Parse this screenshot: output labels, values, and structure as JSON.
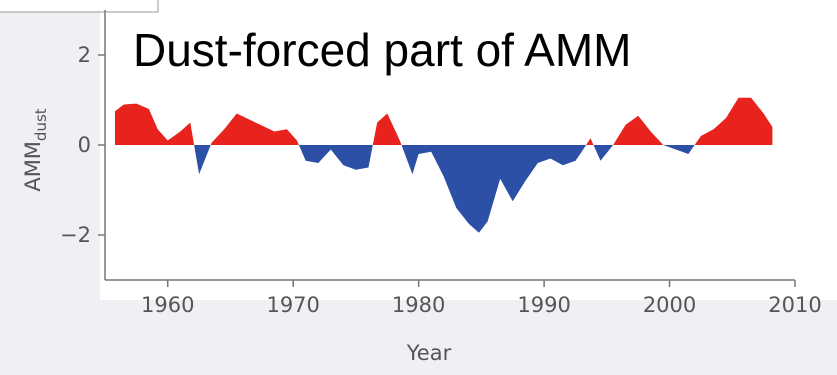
{
  "chart_data": {
    "type": "area",
    "title": "Dust-forced part of AMM",
    "xlabel": "Year",
    "ylabel": "AMM",
    "ylabel_subscript": "dust",
    "xlim": [
      1955,
      2010
    ],
    "ylim": [
      -3,
      3
    ],
    "xticks": [
      1960,
      1970,
      1980,
      1990,
      2000,
      2010
    ],
    "yticks": [
      2,
      0,
      -2
    ],
    "ytick_labels": [
      "2",
      "0",
      "−2"
    ],
    "positive_color": "#e8221c",
    "negative_color": "#2b50a6",
    "grid": false,
    "x": [
      1955.8,
      1956.5,
      1957.5,
      1958.5,
      1959.2,
      1960,
      1961,
      1961.8,
      1962.5,
      1963.5,
      1964.5,
      1965.5,
      1967,
      1968.5,
      1969.5,
      1970.3,
      1971,
      1972,
      1973,
      1974,
      1975,
      1976,
      1976.7,
      1977.5,
      1978.5,
      1979.5,
      1980,
      1981,
      1982,
      1983,
      1984,
      1984.8,
      1985.5,
      1986.5,
      1987.5,
      1988.5,
      1989.5,
      1990.5,
      1991.5,
      1992.5,
      1993,
      1993.7,
      1994.5,
      1995.5,
      1996.5,
      1997.5,
      1998.5,
      1999.5,
      2000.5,
      2001.5,
      2002.5,
      2003.5,
      2004.5,
      2005.5,
      2006.5,
      2007.5,
      2008.2
    ],
    "y": [
      0.75,
      0.9,
      0.92,
      0.8,
      0.35,
      0.1,
      0.3,
      0.5,
      -0.65,
      0.05,
      0.35,
      0.7,
      0.5,
      0.3,
      0.35,
      0.1,
      -0.35,
      -0.4,
      -0.1,
      -0.45,
      -0.55,
      -0.5,
      0.5,
      0.7,
      0.1,
      -0.65,
      -0.2,
      -0.15,
      -0.7,
      -1.4,
      -1.75,
      -1.95,
      -1.7,
      -0.75,
      -1.25,
      -0.8,
      -0.4,
      -0.3,
      -0.45,
      -0.35,
      -0.15,
      0.15,
      -0.35,
      0.0,
      0.45,
      0.65,
      0.3,
      0.0,
      -0.1,
      -0.2,
      0.2,
      0.35,
      0.6,
      1.05,
      1.05,
      0.7,
      0.4
    ]
  }
}
